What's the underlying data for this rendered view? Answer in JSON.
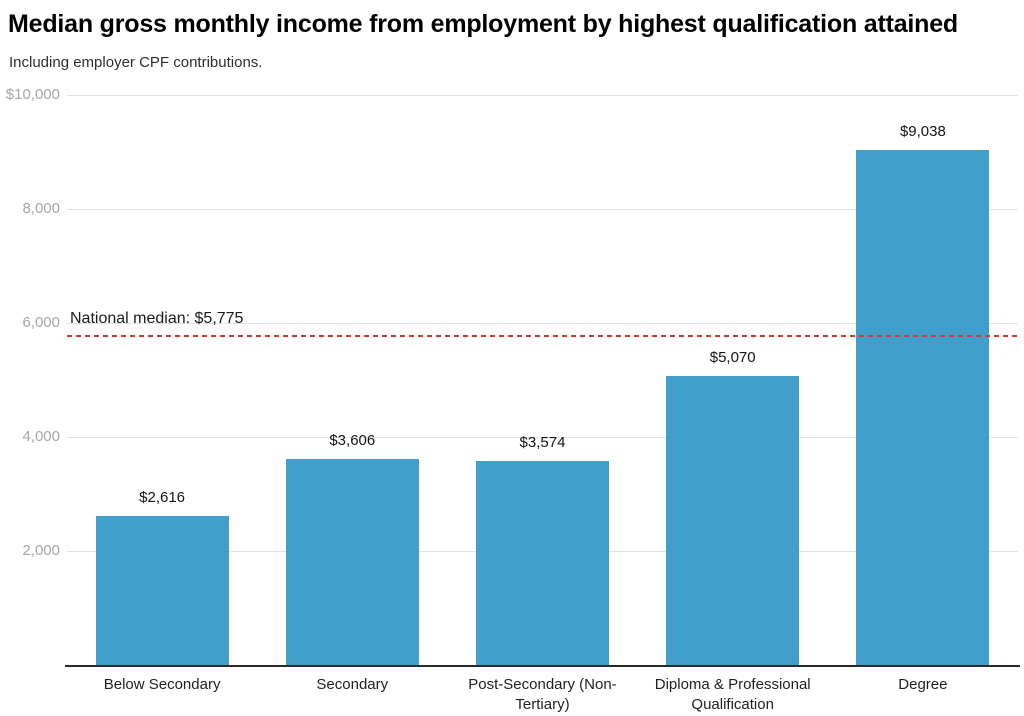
{
  "chart_data": {
    "type": "bar",
    "title": "Median gross monthly income from employment by highest qualification attained",
    "subtitle": "Including employer CPF contributions.",
    "categories": [
      "Below Secondary",
      "Secondary",
      "Post-Secondary (Non-Tertiary)",
      "Diploma & Professional Qualification",
      "Degree"
    ],
    "values": [
      2616,
      3606,
      3574,
      5070,
      9038
    ],
    "value_labels": [
      "$2,616",
      "$3,606",
      "$3,574",
      "$5,070",
      "$9,038"
    ],
    "ylim": [
      0,
      10000
    ],
    "yticks": [
      {
        "value": 10000,
        "label": "$10,000"
      },
      {
        "value": 8000,
        "label": "8,000"
      },
      {
        "value": 6000,
        "label": "6,000"
      },
      {
        "value": 4000,
        "label": "4,000"
      },
      {
        "value": 2000,
        "label": "2,000"
      }
    ],
    "reference_line": {
      "value": 5775,
      "label": "National median: $5,775",
      "color": "#d6392e"
    },
    "bar_color": "#429fcb",
    "grid": true,
    "legend": false,
    "xlabel": "",
    "ylabel": ""
  }
}
